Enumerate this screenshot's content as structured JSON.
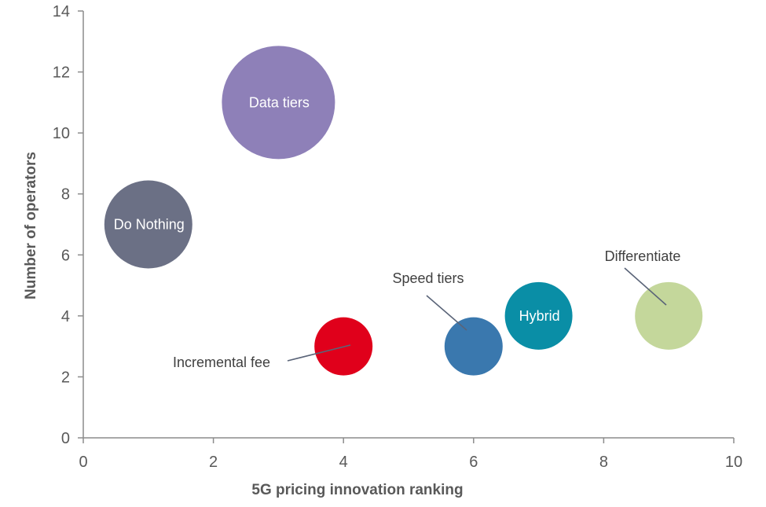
{
  "chart_data": {
    "type": "bubble",
    "title": "",
    "xlabel": "5G pricing innovation ranking",
    "ylabel": "Number of operators",
    "xlim": [
      0,
      10
    ],
    "ylim": [
      0,
      14
    ],
    "xticks": [
      0,
      2,
      4,
      6,
      8,
      10
    ],
    "yticks": [
      0,
      2,
      4,
      6,
      8,
      10,
      12,
      14
    ],
    "grid": false,
    "points": [
      {
        "name": "Do Nothing",
        "x": 1,
        "y": 7,
        "color": "#6b7085",
        "label_inside": true
      },
      {
        "name": "Data tiers",
        "x": 3,
        "y": 11,
        "color": "#8e80b8",
        "label_inside": true
      },
      {
        "name": "Incremental fee",
        "x": 4,
        "y": 3,
        "color": "#e0001b",
        "label_inside": false
      },
      {
        "name": "Speed tiers",
        "x": 6,
        "y": 3,
        "color": "#3a78ae",
        "label_inside": false
      },
      {
        "name": "Hybrid",
        "x": 7,
        "y": 4,
        "color": "#0a8ea6",
        "label_inside": true
      },
      {
        "name": "Differentiate",
        "x": 9,
        "y": 4,
        "color": "#c4d79b",
        "label_inside": false
      }
    ]
  }
}
